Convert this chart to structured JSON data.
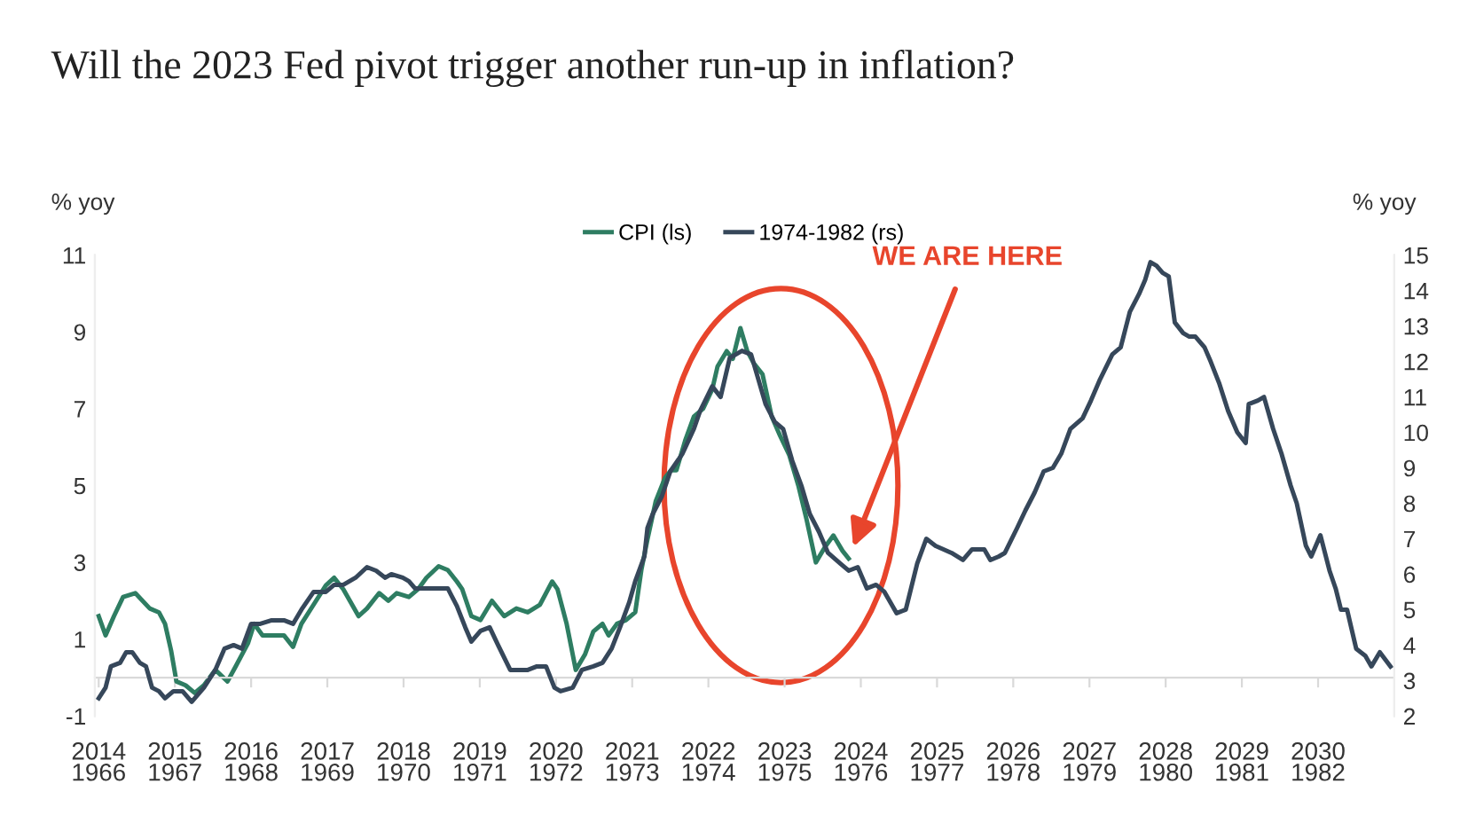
{
  "chart_data": {
    "type": "line",
    "title": "Will the 2023 Fed pivot trigger another run-up in inflation?",
    "ylabel": "% yoy",
    "y2label": "% yoy",
    "series": [
      {
        "name": "CPI (ls)",
        "color": "#2e7d62",
        "x": [
          2014.0,
          2014.09,
          2014.2,
          2014.32,
          2014.48,
          2014.67,
          2014.79,
          2014.87,
          2014.95,
          2015.02,
          2015.14,
          2015.26,
          2015.38,
          2015.53,
          2015.69,
          2015.8,
          2015.96,
          2016.04,
          2016.15,
          2016.27,
          2016.43,
          2016.55,
          2016.66,
          2016.82,
          2016.98,
          2017.09,
          2017.21,
          2017.41,
          2017.52,
          2017.68,
          2017.8,
          2017.91,
          2018.07,
          2018.19,
          2018.3,
          2018.46,
          2018.58,
          2018.7,
          2018.77,
          2018.89,
          2019.01,
          2019.16,
          2019.32,
          2019.48,
          2019.63,
          2019.79,
          2019.95,
          2020.02,
          2020.14,
          2020.26,
          2020.38,
          2020.49,
          2020.61,
          2020.69,
          2020.8,
          2020.92,
          2021.04,
          2021.12,
          2021.2,
          2021.31,
          2021.43,
          2021.51,
          2021.58,
          2021.7,
          2021.81,
          2021.93,
          2022.05,
          2022.12,
          2022.24,
          2022.32,
          2022.42,
          2022.51,
          2022.59,
          2022.71,
          2022.83,
          2022.94,
          2023.06,
          2023.18,
          2023.29,
          2023.41,
          2023.53,
          2023.64,
          2023.76,
          2023.84
        ],
        "values": [
          1.6,
          1.1,
          1.6,
          2.1,
          2.2,
          1.8,
          1.7,
          1.4,
          0.7,
          -0.1,
          -0.2,
          -0.4,
          -0.2,
          0.2,
          -0.1,
          0.3,
          0.9,
          1.4,
          1.1,
          1.1,
          1.1,
          0.8,
          1.4,
          1.9,
          2.4,
          2.6,
          2.3,
          1.6,
          1.8,
          2.2,
          2.0,
          2.2,
          2.1,
          2.3,
          2.6,
          2.9,
          2.8,
          2.5,
          2.3,
          1.6,
          1.5,
          2.0,
          1.6,
          1.8,
          1.7,
          1.9,
          2.5,
          2.3,
          1.4,
          0.2,
          0.6,
          1.2,
          1.4,
          1.1,
          1.4,
          1.5,
          1.7,
          2.8,
          3.6,
          4.6,
          5.2,
          5.4,
          5.4,
          6.2,
          6.8,
          7.0,
          7.5,
          8.1,
          8.5,
          8.3,
          9.1,
          8.5,
          8.2,
          7.9,
          6.8,
          6.3,
          5.8,
          5.0,
          4.1,
          3.0,
          3.4,
          3.7,
          3.3,
          3.1
        ]
      },
      {
        "name": "1974-1982 (rs)",
        "color": "#36475a",
        "axis": "y2",
        "x": [
          2014.0,
          2014.09,
          2014.16,
          2014.28,
          2014.36,
          2014.44,
          2014.54,
          2014.62,
          2014.7,
          2014.79,
          2014.87,
          2014.98,
          2015.1,
          2015.22,
          2015.38,
          2015.53,
          2015.65,
          2015.77,
          2015.88,
          2016.0,
          2016.12,
          2016.27,
          2016.43,
          2016.55,
          2016.66,
          2016.82,
          2016.98,
          2017.09,
          2017.21,
          2017.37,
          2017.52,
          2017.64,
          2017.76,
          2017.84,
          2017.99,
          2018.07,
          2018.15,
          2018.27,
          2018.46,
          2018.58,
          2018.7,
          2018.81,
          2018.89,
          2019.01,
          2019.13,
          2019.24,
          2019.4,
          2019.48,
          2019.63,
          2019.75,
          2019.87,
          2019.98,
          2020.06,
          2020.22,
          2020.34,
          2020.49,
          2020.61,
          2020.73,
          2020.84,
          2020.96,
          2021.04,
          2021.16,
          2021.2,
          2021.27,
          2021.39,
          2021.5,
          2021.66,
          2021.81,
          2021.89,
          2022.05,
          2022.16,
          2022.28,
          2022.44,
          2022.56,
          2022.75,
          2022.87,
          2022.98,
          2023.1,
          2023.22,
          2023.33,
          2023.45,
          2023.57,
          2023.73,
          2023.84,
          2023.96,
          2024.08,
          2024.2,
          2024.31,
          2024.47,
          2024.59,
          2024.74,
          2024.86,
          2024.98,
          2025.19,
          2025.34,
          2025.46,
          2025.62,
          2025.7,
          2025.81,
          2025.89,
          2026.05,
          2026.16,
          2026.28,
          2026.4,
          2026.52,
          2026.63,
          2026.75,
          2026.91,
          2027.02,
          2027.14,
          2027.3,
          2027.41,
          2027.53,
          2027.65,
          2027.73,
          2027.8,
          2027.88,
          2027.96,
          2028.04,
          2028.12,
          2028.23,
          2028.31,
          2028.39,
          2028.51,
          2028.59,
          2028.7,
          2028.82,
          2028.94,
          2029.05,
          2029.09,
          2029.21,
          2029.29,
          2029.41,
          2029.52,
          2029.64,
          2029.72,
          2029.84,
          2029.91,
          2030.03,
          2030.15,
          2030.23,
          2030.3,
          2030.38,
          2030.5,
          2030.62,
          2030.7,
          2030.81,
          2030.95
        ],
        "values": [
          2.5,
          2.8,
          3.4,
          3.5,
          3.8,
          3.8,
          3.5,
          3.4,
          2.8,
          2.7,
          2.5,
          2.7,
          2.7,
          2.4,
          2.8,
          3.3,
          3.9,
          4.0,
          3.9,
          4.6,
          4.6,
          4.7,
          4.7,
          4.6,
          5.0,
          5.5,
          5.5,
          5.7,
          5.7,
          5.9,
          6.2,
          6.1,
          5.9,
          6.0,
          5.9,
          5.8,
          5.6,
          5.6,
          5.6,
          5.6,
          5.1,
          4.5,
          4.1,
          4.4,
          4.5,
          4.0,
          3.3,
          3.3,
          3.3,
          3.4,
          3.4,
          2.8,
          2.7,
          2.8,
          3.3,
          3.4,
          3.5,
          3.9,
          4.5,
          5.2,
          5.8,
          6.5,
          7.3,
          7.7,
          8.2,
          8.9,
          9.4,
          10.1,
          10.6,
          11.3,
          11.0,
          12.1,
          12.3,
          12.2,
          10.8,
          10.3,
          10.1,
          9.2,
          8.5,
          7.7,
          7.2,
          6.6,
          6.3,
          6.1,
          6.2,
          5.6,
          5.7,
          5.5,
          4.9,
          5.0,
          6.3,
          7.0,
          6.8,
          6.6,
          6.4,
          6.7,
          6.7,
          6.4,
          6.5,
          6.6,
          7.3,
          7.8,
          8.3,
          8.9,
          9.0,
          9.4,
          10.1,
          10.4,
          10.9,
          11.5,
          12.2,
          12.4,
          13.4,
          13.9,
          14.3,
          14.8,
          14.7,
          14.5,
          14.4,
          13.1,
          12.8,
          12.7,
          12.7,
          12.4,
          12.0,
          11.4,
          10.6,
          10.0,
          9.7,
          10.8,
          10.9,
          11.0,
          10.1,
          9.4,
          8.5,
          8.0,
          6.8,
          6.5,
          7.1,
          6.1,
          5.6,
          5.0,
          5.0,
          3.9,
          3.7,
          3.4,
          3.8,
          3.4
        ]
      }
    ],
    "xlim": [
      2013.95,
      2031.0
    ],
    "xticks": [
      2014,
      2015,
      2016,
      2017,
      2018,
      2019,
      2020,
      2021,
      2022,
      2023,
      2024,
      2025,
      2026,
      2027,
      2028,
      2029,
      2030
    ],
    "x2lim": [
      1965.95,
      1983.0
    ],
    "x2ticks": [
      1966,
      1967,
      1968,
      1969,
      1970,
      1971,
      1972,
      1973,
      1974,
      1975,
      1976,
      1977,
      1978,
      1979,
      1980,
      1981,
      1982
    ],
    "ylim": [
      -1,
      11
    ],
    "yticks": [
      -1,
      1,
      3,
      5,
      7,
      9,
      11
    ],
    "y2lim": [
      2,
      15
    ],
    "y2ticks": [
      2,
      3,
      4,
      5,
      6,
      7,
      8,
      9,
      10,
      11,
      12,
      13,
      14,
      15
    ],
    "annotations": [
      {
        "text": "WE ARE HERE",
        "x": 2023.9,
        "y": 3.4
      }
    ],
    "legend": "top",
    "grid": false,
    "marker": "none",
    "line_style": "solid"
  }
}
